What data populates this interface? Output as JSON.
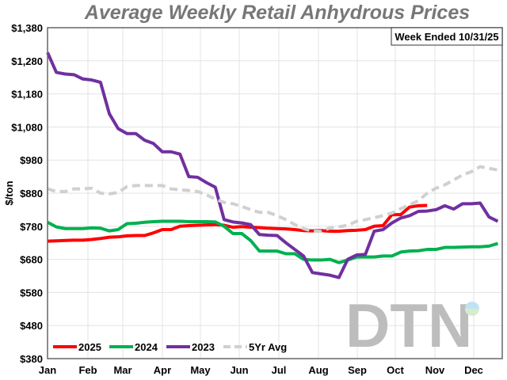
{
  "chart_data": {
    "type": "line",
    "title": "Average Weekly Retail Anhydrous Prices",
    "annotation": "Week Ended 10/31/25",
    "ylabel": "$/ton",
    "xlabel": "",
    "ylim": [
      380,
      1380
    ],
    "yticks": [
      "$380",
      "$480",
      "$580",
      "$680",
      "$780",
      "$880",
      "$980",
      "$1,080",
      "$1,180",
      "$1,280",
      "$1,380"
    ],
    "xticks": [
      "Jan",
      "Feb",
      "Mar",
      "Apr",
      "May",
      "Jun",
      "Jul",
      "Aug",
      "Sep",
      "Oct",
      "Nov",
      "Dec"
    ],
    "x_unit": "week of year (1-52)",
    "grid": true,
    "legend": "bottom-left",
    "watermark": "DTN",
    "series": [
      {
        "name": "2025",
        "color": "#ff0000",
        "dash": false,
        "values": [
          735,
          736,
          737,
          738,
          738,
          740,
          743,
          747,
          748,
          751,
          752,
          752,
          760,
          770,
          770,
          780,
          782,
          783,
          784,
          785,
          783,
          777,
          779,
          777,
          776,
          774,
          773,
          772,
          770,
          767,
          766,
          767,
          765,
          765,
          767,
          768,
          770,
          780,
          782,
          815,
          815,
          838,
          842,
          843
        ]
      },
      {
        "name": "2024",
        "color": "#00b050",
        "dash": false,
        "values": [
          792,
          778,
          773,
          773,
          773,
          775,
          774,
          766,
          770,
          788,
          789,
          792,
          794,
          795,
          795,
          795,
          794,
          794,
          794,
          793,
          780,
          758,
          758,
          737,
          705,
          705,
          705,
          697,
          697,
          680,
          678,
          678,
          680,
          670,
          678,
          687,
          687,
          687,
          690,
          690,
          702,
          705,
          706,
          710,
          710,
          716,
          716,
          717,
          718,
          718,
          720,
          728
        ]
      },
      {
        "name": "2023",
        "color": "#7030a0",
        "dash": false,
        "values": [
          1305,
          1245,
          1240,
          1238,
          1225,
          1222,
          1215,
          1120,
          1075,
          1060,
          1060,
          1040,
          1030,
          1005,
          1005,
          998,
          930,
          928,
          912,
          898,
          800,
          793,
          790,
          785,
          755,
          753,
          752,
          730,
          710,
          690,
          640,
          636,
          632,
          625,
          680,
          693,
          695,
          765,
          770,
          790,
          805,
          812,
          825,
          826,
          830,
          842,
          832,
          848,
          848,
          850,
          808,
          795
        ]
      },
      {
        "name": "5Yr Avg",
        "color": "#d0d0d0",
        "dash": true,
        "values": [
          893,
          885,
          885,
          893,
          893,
          895,
          880,
          878,
          882,
          900,
          903,
          903,
          903,
          903,
          893,
          890,
          888,
          885,
          875,
          862,
          852,
          848,
          840,
          830,
          822,
          822,
          812,
          800,
          785,
          773,
          765,
          765,
          775,
          778,
          783,
          795,
          800,
          806,
          812,
          820,
          833,
          845,
          857,
          880,
          895,
          905,
          920,
          935,
          945,
          960,
          955,
          950
        ]
      }
    ]
  }
}
